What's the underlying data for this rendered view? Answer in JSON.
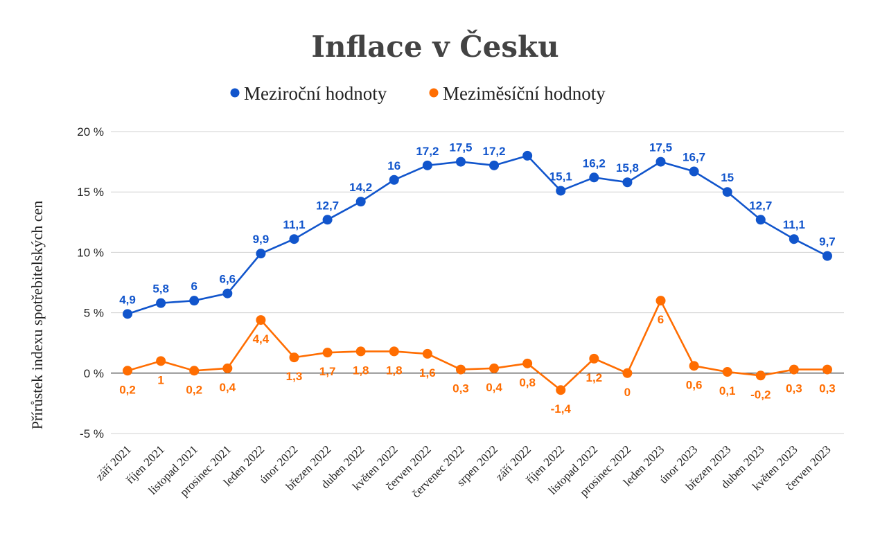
{
  "chart_data": {
    "type": "line",
    "title": "Inflace v Česku",
    "ylabel": "Přírůstek indexu spotřebitelských cen",
    "xlabel": "",
    "ylim": [
      -5,
      20
    ],
    "yticks": [
      -5,
      0,
      5,
      10,
      15,
      20
    ],
    "ytick_labels": [
      "-5 %",
      "0 %",
      "5 %",
      "10 %",
      "15 %",
      "20 %"
    ],
    "grid": true,
    "legend_position": "top",
    "categories": [
      "září 2021",
      "říjen 2021",
      "listopad 2021",
      "prosinec 2021",
      "leden 2022",
      "únor 2022",
      "březen 2022",
      "duben 2022",
      "květen 2022",
      "červen 2022",
      "červenec 2022",
      "srpen 2022",
      "září 2022",
      "říjen 2022",
      "listopad 2022",
      "prosinec 2022",
      "leden 2023",
      "únor 2023",
      "březen 2023",
      "duben 2023",
      "květen 2023",
      "červen 2023"
    ],
    "series": [
      {
        "name": "Meziroční hodnoty",
        "color": "#1155cc",
        "values": [
          4.9,
          5.8,
          6.0,
          6.6,
          9.9,
          11.1,
          12.7,
          14.2,
          16.0,
          17.2,
          17.5,
          17.2,
          18.0,
          15.1,
          16.2,
          15.8,
          17.5,
          16.7,
          15.0,
          12.7,
          11.1,
          9.7
        ],
        "labels": [
          "4,9",
          "5,8",
          "6",
          "6,6",
          "9,9",
          "11,1",
          "12,7",
          "14,2",
          "16",
          "17,2",
          "17,5",
          "17,2",
          "",
          "15,1",
          "16,2",
          "15,8",
          "17,5",
          "16,7",
          "15",
          "12,7",
          "11,1",
          "9,7"
        ],
        "label_position": "above"
      },
      {
        "name": "Meziměsíční hodnoty",
        "color": "#ff6d01",
        "values": [
          0.2,
          1.0,
          0.2,
          0.4,
          4.4,
          1.3,
          1.7,
          1.8,
          1.8,
          1.6,
          0.3,
          0.4,
          0.8,
          -1.4,
          1.2,
          0.0,
          6.0,
          0.6,
          0.1,
          -0.2,
          0.3,
          0.3
        ],
        "labels": [
          "0,2",
          "1",
          "0,2",
          "0,4",
          "4,4",
          "1,3",
          "1,7",
          "1,8",
          "1,8",
          "1,6",
          "0,3",
          "0,4",
          "0,8",
          "-1,4",
          "1,2",
          "0",
          "6",
          "0,6",
          "0,1",
          "-0,2",
          "0,3",
          "0,3"
        ],
        "label_position": "below"
      }
    ]
  }
}
